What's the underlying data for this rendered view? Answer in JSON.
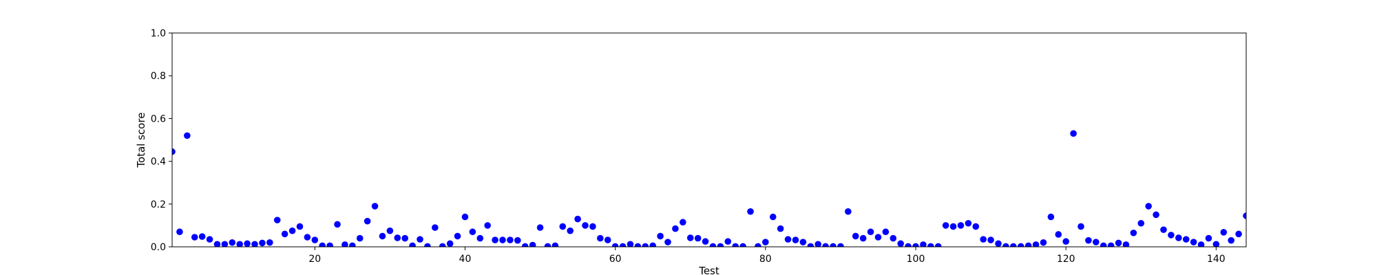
{
  "chart_data": {
    "type": "scatter",
    "xlabel": "Test",
    "ylabel": "Total score",
    "xlim": [
      1,
      144
    ],
    "ylim": [
      0,
      1
    ],
    "x_ticks": [
      20,
      40,
      60,
      80,
      100,
      120,
      140
    ],
    "y_ticks": [
      "0.0",
      "0.2",
      "0.4",
      "0.6",
      "0.8",
      "1.0"
    ],
    "grid": false,
    "marker_color": "#0000ff",
    "x": [
      1,
      2,
      3,
      4,
      5,
      6,
      7,
      8,
      9,
      10,
      11,
      12,
      13,
      14,
      15,
      16,
      17,
      18,
      19,
      20,
      21,
      22,
      23,
      24,
      25,
      26,
      27,
      28,
      29,
      30,
      31,
      32,
      33,
      34,
      35,
      36,
      37,
      38,
      39,
      40,
      41,
      42,
      43,
      44,
      45,
      46,
      47,
      48,
      49,
      50,
      51,
      52,
      53,
      54,
      55,
      56,
      57,
      58,
      59,
      60,
      61,
      62,
      63,
      64,
      65,
      66,
      67,
      68,
      69,
      70,
      71,
      72,
      73,
      74,
      75,
      76,
      77,
      78,
      79,
      80,
      81,
      82,
      83,
      84,
      85,
      86,
      87,
      88,
      89,
      90,
      91,
      92,
      93,
      94,
      95,
      96,
      97,
      98,
      99,
      100,
      101,
      102,
      103,
      104,
      105,
      106,
      107,
      108,
      109,
      110,
      111,
      112,
      113,
      114,
      115,
      116,
      117,
      118,
      119,
      120,
      121,
      122,
      123,
      124,
      125,
      126,
      127,
      128,
      129,
      130,
      131,
      132,
      133,
      134,
      135,
      136,
      137,
      138,
      139,
      140,
      141,
      142,
      143,
      144
    ],
    "y": [
      0.445,
      0.07,
      0.52,
      0.045,
      0.048,
      0.035,
      0.012,
      0.012,
      0.02,
      0.012,
      0.015,
      0.012,
      0.018,
      0.02,
      0.125,
      0.06,
      0.075,
      0.095,
      0.045,
      0.032,
      0.005,
      0.005,
      0.105,
      0.01,
      0.005,
      0.04,
      0.12,
      0.19,
      0.05,
      0.075,
      0.042,
      0.04,
      0.005,
      0.035,
      0.002,
      0.09,
      0.002,
      0.015,
      0.05,
      0.14,
      0.07,
      0.04,
      0.1,
      0.032,
      0.032,
      0.032,
      0.03,
      0.002,
      0.008,
      0.09,
      0.002,
      0.005,
      0.095,
      0.075,
      0.13,
      0.1,
      0.095,
      0.04,
      0.032,
      0.002,
      0.002,
      0.012,
      0.002,
      0.002,
      0.005,
      0.05,
      0.022,
      0.085,
      0.115,
      0.042,
      0.04,
      0.025,
      0.002,
      0.002,
      0.025,
      0.002,
      0.002,
      0.165,
      0.002,
      0.022,
      0.14,
      0.085,
      0.035,
      0.032,
      0.022,
      0.002,
      0.012,
      0.002,
      0.002,
      0.002,
      0.165,
      0.05,
      0.04,
      0.07,
      0.045,
      0.07,
      0.04,
      0.015,
      0.002,
      0.002,
      0.01,
      0.002,
      0.002,
      0.1,
      0.095,
      0.1,
      0.11,
      0.095,
      0.035,
      0.032,
      0.015,
      0.002,
      0.002,
      0.002,
      0.005,
      0.01,
      0.02,
      0.14,
      0.058,
      0.025,
      0.53,
      0.095,
      0.03,
      0.022,
      0.005,
      0.005,
      0.018,
      0.01,
      0.065,
      0.11,
      0.19,
      0.15,
      0.08,
      0.055,
      0.042,
      0.035,
      0.022,
      0.01,
      0.04,
      0.012,
      0.068,
      0.03,
      0.06,
      0.145
    ]
  }
}
